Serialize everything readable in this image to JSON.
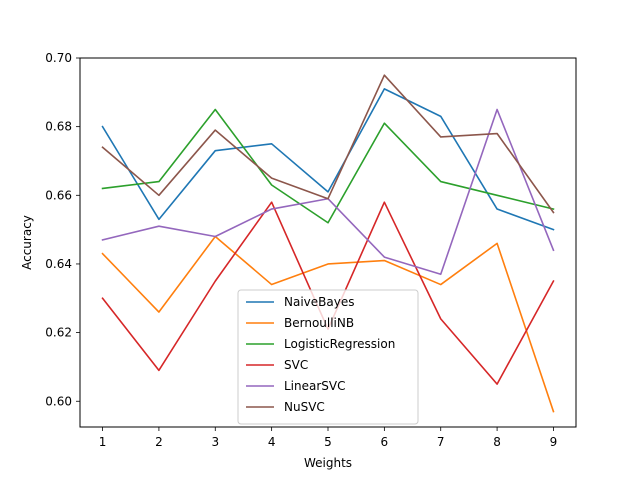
{
  "chart_data": {
    "type": "line",
    "title": "",
    "xlabel": "Weights",
    "ylabel": "Accuracy",
    "x": [
      1,
      2,
      3,
      4,
      5,
      6,
      7,
      8,
      9
    ],
    "xlim": [
      0.6,
      9.4
    ],
    "ylim": [
      0.5925,
      0.7
    ],
    "xticks": [
      "1",
      "2",
      "3",
      "4",
      "5",
      "6",
      "7",
      "8",
      "9"
    ],
    "yticks": [
      "0.60",
      "0.62",
      "0.64",
      "0.66",
      "0.68",
      "0.70"
    ],
    "grid": false,
    "legend_position": "lower-center",
    "series": [
      {
        "name": "NaiveBayes",
        "color": "#1f77b4",
        "values": [
          0.68,
          0.653,
          0.673,
          0.675,
          0.661,
          0.691,
          0.683,
          0.656,
          0.65
        ]
      },
      {
        "name": "BernoulliNB",
        "color": "#ff7f0e",
        "values": [
          0.643,
          0.626,
          0.648,
          0.634,
          0.64,
          0.641,
          0.634,
          0.646,
          0.597
        ]
      },
      {
        "name": "LogisticRegression",
        "color": "#2ca02c",
        "values": [
          0.662,
          0.664,
          0.685,
          0.663,
          0.652,
          0.681,
          0.664,
          0.66,
          0.656
        ]
      },
      {
        "name": "SVC",
        "color": "#d62728",
        "values": [
          0.63,
          0.609,
          0.635,
          0.658,
          0.621,
          0.658,
          0.624,
          0.605,
          0.635
        ]
      },
      {
        "name": "LinearSVC",
        "color": "#9467bd",
        "values": [
          0.647,
          0.651,
          0.648,
          0.656,
          0.659,
          0.642,
          0.637,
          0.685,
          0.644
        ]
      },
      {
        "name": "NuSVC",
        "color": "#8c564b",
        "values": [
          0.674,
          0.66,
          0.679,
          0.665,
          0.659,
          0.695,
          0.677,
          0.678,
          0.655
        ]
      }
    ]
  }
}
